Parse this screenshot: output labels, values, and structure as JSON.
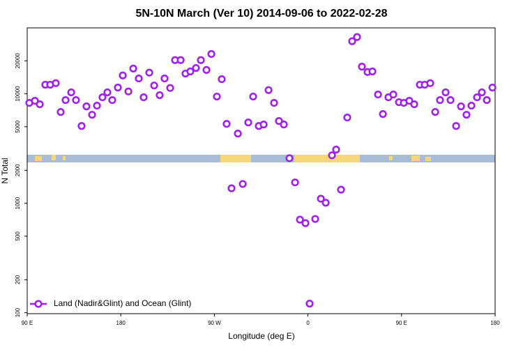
{
  "chart_data": {
    "type": "scatter",
    "title": "5N-10N March (Ver 10)   2014-09-06 to 2022-02-28",
    "x_label": "Longitude (deg E)",
    "y_label": "N Total",
    "y_log": true,
    "legend": "lower left",
    "xlim": [
      90,
      540
    ],
    "ylim": [
      98,
      40000
    ],
    "xticks": [
      {
        "value": 90,
        "label": "90 E"
      },
      {
        "value": 180,
        "label": "180"
      },
      {
        "value": 270,
        "label": "90 W"
      },
      {
        "value": 360,
        "label": "0"
      },
      {
        "value": 450,
        "label": "90 E"
      },
      {
        "value": 540,
        "label": "180"
      }
    ],
    "yticks": [
      100,
      200,
      500,
      1000,
      2000,
      5000,
      10000,
      20000
    ],
    "x": [
      92.0,
      97.4,
      102.1,
      107.4,
      112.1,
      117.5,
      122.2,
      126.9,
      132.3,
      136.9,
      142.3,
      147.0,
      152.4,
      157.1,
      162.4,
      167.1,
      171.8,
      177.2,
      181.9,
      187.3,
      192.0,
      197.3,
      202.0,
      207.4,
      212.1,
      217.4,
      222.1,
      227.5,
      232.2,
      237.6,
      242.2,
      246.9,
      252.3,
      257.0,
      262.4,
      267.1,
      272.4,
      277.1,
      281.8,
      286.5,
      292.6,
      297.3,
      302.6,
      307.3,
      312.7,
      317.4,
      322.1,
      327.4,
      332.1,
      336.8,
      342.2,
      347.6,
      352.3,
      357.6,
      361.6,
      367.0,
      372.4,
      377.1,
      383.1,
      387.1,
      391.8,
      397.8,
      402.5,
      407.2,
      411.9,
      417.3,
      422.0,
      427.4,
      432.1,
      437.4,
      442.1,
      447.5,
      452.2,
      457.5,
      462.2,
      467.6,
      472.3,
      477.6,
      482.4,
      487.0,
      492.4,
      497.1,
      502.5,
      507.2,
      512.5,
      517.2,
      522.6,
      527.3,
      532.0,
      537.4
    ],
    "series": [
      {
        "name": "Land (Nadir&Glint) and Ocean (Glint)",
        "color": "#a020f0",
        "values": [
          8260,
          8630,
          8020,
          12100,
          12100,
          12500,
          6820,
          8760,
          10300,
          8760,
          5080,
          7670,
          6430,
          7790,
          9290,
          10300,
          8760,
          11400,
          14700,
          10500,
          17000,
          13800,
          9290,
          15600,
          11900,
          9710,
          13800,
          11300,
          20300,
          20300,
          15300,
          16000,
          17200,
          20300,
          16500,
          23100,
          9430,
          13600,
          5310,
          1370,
          4330,
          1500,
          5470,
          9430,
          5080,
          5240,
          10800,
          8260,
          5640,
          5240,
          2580,
          1550,
          708,
          658,
          121,
          718,
          1100,
          1010,
          2740,
          3090,
          1330,
          6070,
          30200,
          33000,
          17700,
          15800,
          16000,
          9850,
          6530,
          9290,
          9850,
          8380,
          8260,
          8630,
          8020,
          12100,
          12100,
          12500,
          6820,
          8760,
          10300,
          8760,
          5080,
          7670,
          6430,
          7790,
          9290,
          10300,
          8760,
          11400
        ]
      }
    ]
  }
}
